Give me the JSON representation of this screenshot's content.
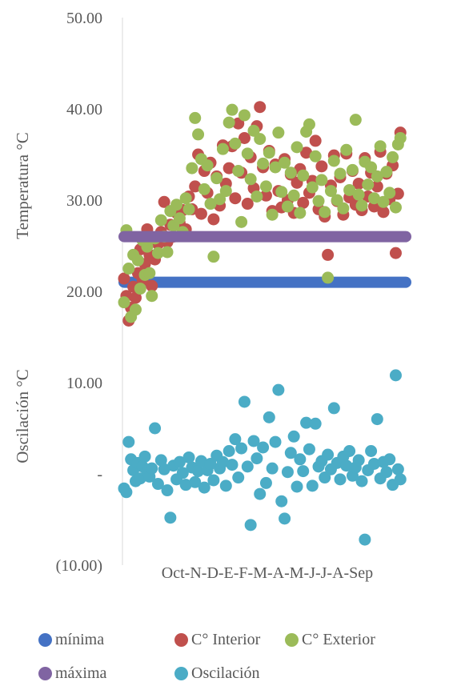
{
  "chart_data": {
    "type": "scatter",
    "title": "",
    "y_axis_titles": [
      "Temperatura °C",
      "Oscilación °C"
    ],
    "x_label_text": "Oct-N-D-E-F-M-A-M-J-J-A-Sep",
    "yticks": [
      {
        "value": 50,
        "label": "50.00"
      },
      {
        "value": 40,
        "label": "40.00"
      },
      {
        "value": 30,
        "label": "30.00"
      },
      {
        "value": 20,
        "label": "20.00"
      },
      {
        "value": 10,
        "label": "10.00"
      },
      {
        "value": 0,
        "label": "-"
      },
      {
        "value": -10,
        "label": "(10.00)"
      }
    ],
    "ylim": [
      -10,
      50
    ],
    "xlim": [
      0,
      365
    ],
    "grid": false,
    "legend_position": "bottom",
    "series": [
      {
        "name": "mínima",
        "color": "#4472C4",
        "constant": 21.0
      },
      {
        "name": "C° Interior",
        "color": "#C0504D",
        "points": [
          [
            0,
            21.4
          ],
          [
            3,
            19.5
          ],
          [
            6,
            16.8
          ],
          [
            9,
            18.2
          ],
          [
            12,
            20.5
          ],
          [
            15,
            19.3
          ],
          [
            18,
            22.0
          ],
          [
            21,
            24.6
          ],
          [
            24,
            21.2
          ],
          [
            27,
            23.0
          ],
          [
            30,
            26.8
          ],
          [
            33,
            24.0
          ],
          [
            36,
            20.6
          ],
          [
            40,
            23.5
          ],
          [
            44,
            25.2
          ],
          [
            48,
            26.5
          ],
          [
            52,
            29.8
          ],
          [
            56,
            25.4
          ],
          [
            60,
            27.3
          ],
          [
            64,
            26.0
          ],
          [
            68,
            28.6
          ],
          [
            72,
            27.5
          ],
          [
            76,
            28.9
          ],
          [
            80,
            26.8
          ],
          [
            84,
            30.4
          ],
          [
            88,
            29.0
          ],
          [
            92,
            31.5
          ],
          [
            96,
            35.0
          ],
          [
            100,
            28.5
          ],
          [
            104,
            33.2
          ],
          [
            108,
            30.8
          ],
          [
            112,
            34.1
          ],
          [
            116,
            27.9
          ],
          [
            120,
            32.6
          ],
          [
            124,
            29.4
          ],
          [
            128,
            36.0
          ],
          [
            132,
            31.8
          ],
          [
            136,
            33.5
          ],
          [
            140,
            35.9
          ],
          [
            144,
            30.2
          ],
          [
            148,
            38.4
          ],
          [
            152,
            33.0
          ],
          [
            156,
            36.8
          ],
          [
            160,
            29.6
          ],
          [
            164,
            34.7
          ],
          [
            168,
            31.3
          ],
          [
            172,
            38.1
          ],
          [
            176,
            40.2
          ],
          [
            180,
            33.6
          ],
          [
            184,
            30.5
          ],
          [
            188,
            35.4
          ],
          [
            192,
            28.8
          ],
          [
            196,
            33.9
          ],
          [
            200,
            31.0
          ],
          [
            204,
            29.2
          ],
          [
            208,
            34.5
          ],
          [
            212,
            30.0
          ],
          [
            216,
            32.8
          ],
          [
            220,
            28.6
          ],
          [
            224,
            31.9
          ],
          [
            228,
            33.4
          ],
          [
            232,
            29.7
          ],
          [
            236,
            35.2
          ],
          [
            240,
            30.8
          ],
          [
            244,
            32.1
          ],
          [
            248,
            36.5
          ],
          [
            252,
            29.0
          ],
          [
            256,
            33.7
          ],
          [
            260,
            28.2
          ],
          [
            264,
            24.0
          ],
          [
            268,
            31.6
          ],
          [
            272,
            34.9
          ],
          [
            276,
            29.9
          ],
          [
            280,
            32.5
          ],
          [
            284,
            28.4
          ],
          [
            288,
            35.1
          ],
          [
            292,
            30.3
          ],
          [
            296,
            33.2
          ],
          [
            300,
            29.5
          ],
          [
            304,
            31.8
          ],
          [
            308,
            28.9
          ],
          [
            312,
            34.6
          ],
          [
            316,
            30.4
          ],
          [
            320,
            33.0
          ],
          [
            324,
            29.3
          ],
          [
            328,
            31.5
          ],
          [
            332,
            35.3
          ],
          [
            336,
            28.7
          ],
          [
            340,
            32.9
          ],
          [
            344,
            30.1
          ],
          [
            348,
            33.8
          ],
          [
            352,
            24.2
          ],
          [
            355,
            30.7
          ],
          [
            358,
            37.4
          ]
        ]
      },
      {
        "name": "C° Exterior",
        "color": "#9BBB59",
        "points": [
          [
            0,
            18.8
          ],
          [
            3,
            26.7
          ],
          [
            6,
            22.5
          ],
          [
            9,
            17.2
          ],
          [
            12,
            24.0
          ],
          [
            15,
            18.0
          ],
          [
            18,
            23.4
          ],
          [
            21,
            20.3
          ],
          [
            24,
            25.6
          ],
          [
            27,
            21.8
          ],
          [
            30,
            24.9
          ],
          [
            33,
            22.0
          ],
          [
            36,
            19.5
          ],
          [
            40,
            25.8
          ],
          [
            44,
            24.2
          ],
          [
            48,
            27.8
          ],
          [
            52,
            26.0
          ],
          [
            56,
            24.3
          ],
          [
            60,
            28.8
          ],
          [
            64,
            27.2
          ],
          [
            68,
            29.5
          ],
          [
            72,
            28.0
          ],
          [
            76,
            26.5
          ],
          [
            80,
            30.2
          ],
          [
            84,
            29.0
          ],
          [
            88,
            33.5
          ],
          [
            92,
            39.0
          ],
          [
            96,
            37.2
          ],
          [
            100,
            34.5
          ],
          [
            104,
            31.2
          ],
          [
            108,
            33.8
          ],
          [
            112,
            29.6
          ],
          [
            116,
            23.8
          ],
          [
            120,
            32.4
          ],
          [
            124,
            30.1
          ],
          [
            128,
            35.6
          ],
          [
            132,
            31.0
          ],
          [
            136,
            38.5
          ],
          [
            140,
            39.9
          ],
          [
            144,
            36.2
          ],
          [
            148,
            33.2
          ],
          [
            152,
            27.6
          ],
          [
            156,
            39.3
          ],
          [
            160,
            35.1
          ],
          [
            164,
            32.3
          ],
          [
            168,
            37.6
          ],
          [
            172,
            30.4
          ],
          [
            176,
            36.7
          ],
          [
            180,
            34.0
          ],
          [
            184,
            31.5
          ],
          [
            188,
            35.2
          ],
          [
            192,
            28.4
          ],
          [
            196,
            33.6
          ],
          [
            200,
            37.4
          ],
          [
            204,
            30.9
          ],
          [
            208,
            34.1
          ],
          [
            212,
            29.3
          ],
          [
            216,
            33.0
          ],
          [
            220,
            30.5
          ],
          [
            224,
            35.8
          ],
          [
            228,
            28.6
          ],
          [
            232,
            32.7
          ],
          [
            236,
            37.5
          ],
          [
            240,
            38.3
          ],
          [
            244,
            31.4
          ],
          [
            248,
            34.8
          ],
          [
            252,
            29.9
          ],
          [
            256,
            32.2
          ],
          [
            260,
            28.7
          ],
          [
            264,
            21.5
          ],
          [
            268,
            31.0
          ],
          [
            272,
            34.3
          ],
          [
            276,
            30.0
          ],
          [
            280,
            32.9
          ],
          [
            284,
            29.1
          ],
          [
            288,
            35.5
          ],
          [
            292,
            31.1
          ],
          [
            296,
            33.3
          ],
          [
            300,
            38.8
          ],
          [
            304,
            30.6
          ],
          [
            308,
            29.4
          ],
          [
            312,
            34.2
          ],
          [
            316,
            31.7
          ],
          [
            320,
            33.6
          ],
          [
            324,
            30.2
          ],
          [
            328,
            32.6
          ],
          [
            332,
            35.9
          ],
          [
            336,
            29.8
          ],
          [
            340,
            33.1
          ],
          [
            344,
            30.8
          ],
          [
            348,
            34.7
          ],
          [
            352,
            29.2
          ],
          [
            355,
            36.1
          ],
          [
            358,
            36.8
          ]
        ]
      },
      {
        "name": "máxima",
        "color": "#8064A2",
        "constant": 26.0
      },
      {
        "name": "Oscilación",
        "color": "#4BACC6",
        "points": [
          [
            0,
            -1.6
          ],
          [
            3,
            -2.0
          ],
          [
            6,
            3.5
          ],
          [
            9,
            1.6
          ],
          [
            12,
            0.4
          ],
          [
            15,
            -0.8
          ],
          [
            18,
            1.2
          ],
          [
            21,
            -0.5
          ],
          [
            24,
            0.8
          ],
          [
            27,
            1.9
          ],
          [
            30,
            0.2
          ],
          [
            33,
            -0.3
          ],
          [
            36,
            0.6
          ],
          [
            40,
            5.0
          ],
          [
            44,
            -1.1
          ],
          [
            48,
            1.5
          ],
          [
            52,
            0.5
          ],
          [
            56,
            -1.8
          ],
          [
            60,
            -4.8
          ],
          [
            64,
            0.9
          ],
          [
            68,
            -0.6
          ],
          [
            72,
            1.3
          ],
          [
            76,
            0.1
          ],
          [
            80,
            -1.2
          ],
          [
            84,
            1.8
          ],
          [
            88,
            0.7
          ],
          [
            92,
            -0.9
          ],
          [
            96,
            0.3
          ],
          [
            100,
            1.4
          ],
          [
            104,
            -1.5
          ],
          [
            108,
            0.4
          ],
          [
            112,
            1.1
          ],
          [
            116,
            -0.7
          ],
          [
            120,
            2.0
          ],
          [
            124,
            0.6
          ],
          [
            128,
            1.3
          ],
          [
            132,
            -1.3
          ],
          [
            136,
            2.5
          ],
          [
            140,
            1.0
          ],
          [
            144,
            3.8
          ],
          [
            148,
            -0.4
          ],
          [
            152,
            2.8
          ],
          [
            156,
            7.9
          ],
          [
            160,
            0.8
          ],
          [
            164,
            -5.6
          ],
          [
            168,
            3.6
          ],
          [
            172,
            1.7
          ],
          [
            176,
            -2.2
          ],
          [
            180,
            2.9
          ],
          [
            184,
            -1.0
          ],
          [
            188,
            6.2
          ],
          [
            192,
            0.6
          ],
          [
            196,
            3.5
          ],
          [
            200,
            9.2
          ],
          [
            204,
            -3.0
          ],
          [
            208,
            -4.9
          ],
          [
            212,
            0.2
          ],
          [
            216,
            2.3
          ],
          [
            220,
            4.1
          ],
          [
            224,
            -1.4
          ],
          [
            228,
            1.6
          ],
          [
            232,
            0.3
          ],
          [
            236,
            5.6
          ],
          [
            240,
            2.7
          ],
          [
            244,
            -1.3
          ],
          [
            248,
            5.5
          ],
          [
            252,
            0.8
          ],
          [
            256,
            1.4
          ],
          [
            260,
            -0.4
          ],
          [
            264,
            2.1
          ],
          [
            268,
            0.5
          ],
          [
            272,
            7.2
          ],
          [
            276,
            1.2
          ],
          [
            280,
            -0.6
          ],
          [
            284,
            1.9
          ],
          [
            288,
            0.9
          ],
          [
            292,
            2.5
          ],
          [
            296,
            -0.2
          ],
          [
            300,
            0.7
          ],
          [
            304,
            1.5
          ],
          [
            308,
            -0.8
          ],
          [
            312,
            -7.2
          ],
          [
            316,
            0.4
          ],
          [
            320,
            2.5
          ],
          [
            324,
            1.1
          ],
          [
            328,
            6.0
          ],
          [
            332,
            -0.5
          ],
          [
            336,
            1.3
          ],
          [
            340,
            0.2
          ],
          [
            344,
            1.6
          ],
          [
            348,
            -1.2
          ],
          [
            352,
            10.8
          ],
          [
            355,
            0.5
          ],
          [
            358,
            -0.6
          ]
        ]
      }
    ],
    "legend": [
      {
        "name": "mínima",
        "color": "#4472C4"
      },
      {
        "name": "C° Interior",
        "color": "#C0504D"
      },
      {
        "name": "C° Exterior",
        "color": "#9BBB59"
      },
      {
        "name": "máxima",
        "color": "#8064A2"
      },
      {
        "name": "Oscilación",
        "color": "#4BACC6"
      }
    ]
  }
}
